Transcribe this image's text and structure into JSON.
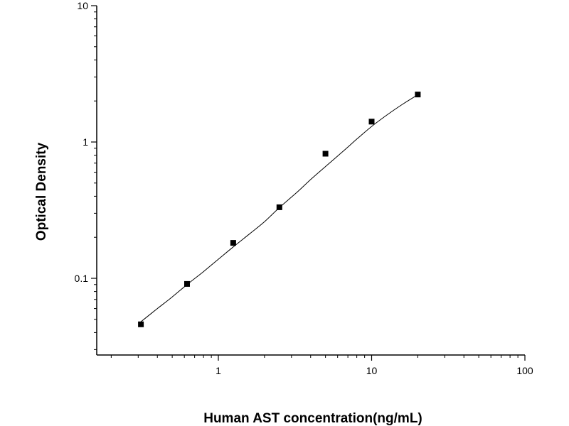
{
  "chart_data": {
    "type": "scatter",
    "title": "",
    "xlabel": "Human AST concentration(ng/mL)",
    "ylabel": "Optical Density",
    "xscale": "log",
    "yscale": "log",
    "xlim": [
      0.15,
      100
    ],
    "ylim": [
      0.025,
      10
    ],
    "x_ticks": [
      1,
      10,
      100
    ],
    "x_tick_labels": [
      "1",
      "10",
      "100"
    ],
    "y_ticks": [
      0.1,
      1,
      10
    ],
    "y_tick_labels": [
      "0.1",
      "1",
      "10"
    ],
    "grid": false,
    "legend": "none",
    "series": [
      {
        "marker": "square",
        "color": "#000000",
        "x": [
          0.3125,
          0.625,
          1.25,
          2.5,
          5,
          10,
          20
        ],
        "y": [
          0.046,
          0.091,
          0.182,
          0.332,
          0.82,
          1.41,
          2.23
        ]
      }
    ],
    "fit_curve": {
      "type": "four-parameter logistic",
      "color": "#000000",
      "x": [
        0.3125,
        0.4,
        0.5,
        0.625,
        0.8,
        1.0,
        1.25,
        1.6,
        2.0,
        2.5,
        3.2,
        4.0,
        5.0,
        6.4,
        8.0,
        10,
        12.5,
        16,
        20
      ],
      "y": [
        0.048,
        0.06,
        0.073,
        0.09,
        0.112,
        0.138,
        0.17,
        0.212,
        0.26,
        0.33,
        0.42,
        0.53,
        0.66,
        0.84,
        1.05,
        1.3,
        1.57,
        1.9,
        2.22
      ]
    }
  }
}
